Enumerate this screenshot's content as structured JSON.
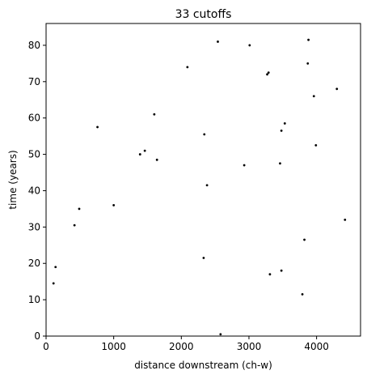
{
  "chart_data": {
    "type": "scatter",
    "title": "33 cutoffs",
    "xlabel": "distance downstream (ch-w)",
    "ylabel": "time (years)",
    "xlim": [
      0,
      4650
    ],
    "ylim": [
      0,
      86
    ],
    "xticks": [
      0,
      1000,
      2000,
      3000,
      4000
    ],
    "yticks": [
      0,
      10,
      20,
      30,
      40,
      50,
      60,
      70,
      80
    ],
    "grid": false,
    "legend": "none",
    "marker_color": "#000000",
    "series": [
      {
        "points": [
          {
            "x": 2540,
            "y": 81.0
          },
          {
            "x": 3010,
            "y": 80.0
          },
          {
            "x": 3880,
            "y": 81.5
          },
          {
            "x": 3870,
            "y": 75.0
          },
          {
            "x": 2090,
            "y": 74.0
          },
          {
            "x": 3290,
            "y": 72.5
          },
          {
            "x": 3270,
            "y": 72.0
          },
          {
            "x": 4300,
            "y": 68.0
          },
          {
            "x": 3960,
            "y": 66.0
          },
          {
            "x": 1600,
            "y": 61.0
          },
          {
            "x": 3530,
            "y": 58.5
          },
          {
            "x": 760,
            "y": 57.5
          },
          {
            "x": 3480,
            "y": 56.5
          },
          {
            "x": 2340,
            "y": 55.5
          },
          {
            "x": 3990,
            "y": 52.5
          },
          {
            "x": 1460,
            "y": 51.0
          },
          {
            "x": 1390,
            "y": 50.0
          },
          {
            "x": 1640,
            "y": 48.5
          },
          {
            "x": 3460,
            "y": 47.5
          },
          {
            "x": 2930,
            "y": 47.0
          },
          {
            "x": 2380,
            "y": 41.5
          },
          {
            "x": 1000,
            "y": 36.0
          },
          {
            "x": 490,
            "y": 35.0
          },
          {
            "x": 4420,
            "y": 32.0
          },
          {
            "x": 420,
            "y": 30.5
          },
          {
            "x": 3820,
            "y": 26.5
          },
          {
            "x": 2330,
            "y": 21.5
          },
          {
            "x": 140,
            "y": 19.0
          },
          {
            "x": 3480,
            "y": 18.0
          },
          {
            "x": 3310,
            "y": 17.0
          },
          {
            "x": 110,
            "y": 14.5
          },
          {
            "x": 3790,
            "y": 11.5
          },
          {
            "x": 2580,
            "y": 0.5
          }
        ]
      }
    ]
  }
}
